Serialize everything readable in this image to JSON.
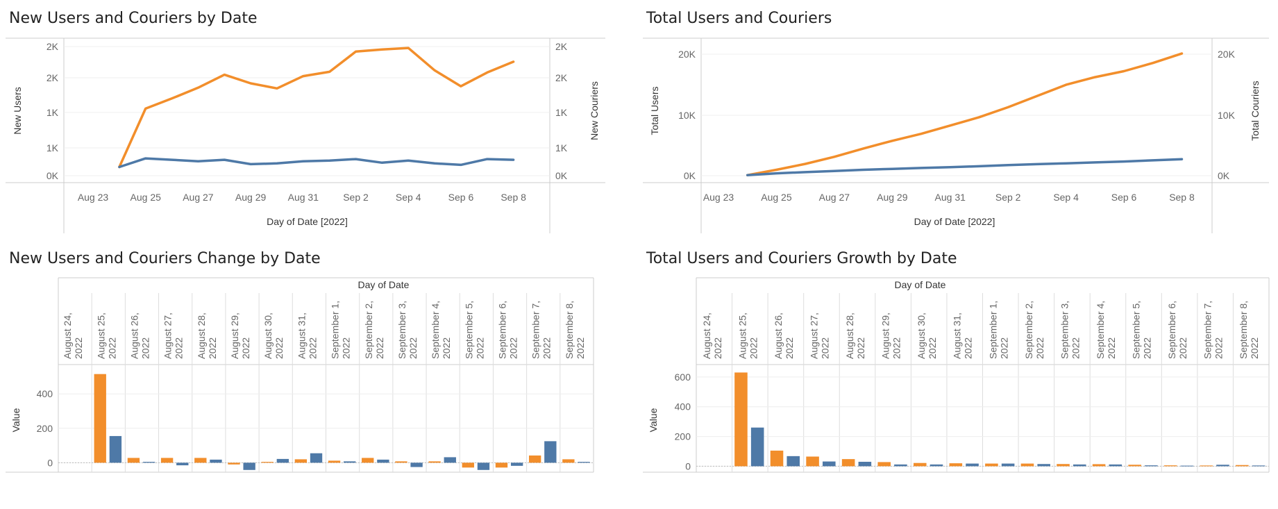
{
  "colors": {
    "users": "#f28e2b",
    "couriers": "#4e79a7",
    "grid": "#d9d9d9",
    "text": "#666666"
  },
  "panels": {
    "p1": {
      "title": "New Users and Couriers by Date"
    },
    "p2": {
      "title": "Total Users and Couriers"
    },
    "p3": {
      "title": "New Users and Couriers Change by Date"
    },
    "p4": {
      "title": "Total Users and Couriers Growth by Date"
    }
  },
  "chart_data": [
    {
      "id": "p1",
      "type": "line",
      "title": "New Users and Couriers by Date",
      "xlabel": "Day of Date [2022]",
      "ylabel_left": "New Users",
      "ylabel_right": "New Couriers",
      "x_ticks": [
        "Aug 23",
        "Aug 25",
        "Aug 27",
        "Aug 29",
        "Aug 31",
        "Sep 2",
        "Sep 4",
        "Sep 6",
        "Sep 8"
      ],
      "y_ticks_left": [
        "2K",
        "2K",
        "1K",
        "1K",
        "0K"
      ],
      "y_ticks_right": [
        "2K",
        "2K",
        "1K",
        "1K",
        "0K"
      ],
      "x_dates": [
        "Aug 24",
        "Aug 25",
        "Aug 26",
        "Aug 27",
        "Aug 28",
        "Aug 29",
        "Aug 30",
        "Aug 31",
        "Sep 1",
        "Sep 2",
        "Sep 3",
        "Sep 4",
        "Sep 5",
        "Sep 6",
        "Sep 7",
        "Sep 8"
      ],
      "series": [
        {
          "name": "New Users",
          "values": [
            120,
            930,
            1070,
            1220,
            1400,
            1280,
            1210,
            1380,
            1440,
            1720,
            1750,
            1770,
            1460,
            1240,
            1430,
            1580
          ]
        },
        {
          "name": "New Couriers",
          "values": [
            120,
            240,
            220,
            200,
            220,
            160,
            170,
            200,
            210,
            230,
            180,
            210,
            170,
            150,
            230,
            220
          ]
        }
      ]
    },
    {
      "id": "p2",
      "type": "line",
      "title": "Total Users and Couriers",
      "xlabel": "Day of Date [2022]",
      "ylabel_left": "Total Users",
      "ylabel_right": "Total Couriers",
      "x_ticks": [
        "Aug 23",
        "Aug 25",
        "Aug 27",
        "Aug 29",
        "Aug 31",
        "Sep 2",
        "Sep 4",
        "Sep 6",
        "Sep 8"
      ],
      "y_ticks_left": [
        "20K",
        "10K",
        "0K"
      ],
      "y_ticks_right": [
        "20K",
        "10K",
        "0K"
      ],
      "x_dates": [
        "Aug 24",
        "Aug 25",
        "Aug 26",
        "Aug 27",
        "Aug 28",
        "Aug 29",
        "Aug 30",
        "Aug 31",
        "Sep 1",
        "Sep 2",
        "Sep 3",
        "Sep 4",
        "Sep 5",
        "Sep 6",
        "Sep 7",
        "Sep 8"
      ],
      "series": [
        {
          "name": "Total Users",
          "values": [
            100,
            1000,
            2000,
            3200,
            4600,
            5900,
            7100,
            8500,
            9900,
            11600,
            13500,
            15400,
            16700,
            17700,
            19100,
            20700
          ]
        },
        {
          "name": "Total Couriers",
          "values": [
            100,
            400,
            600,
            800,
            1000,
            1150,
            1300,
            1450,
            1600,
            1800,
            1950,
            2100,
            2250,
            2400,
            2600,
            2800
          ]
        }
      ]
    },
    {
      "id": "p3",
      "type": "bar",
      "title": "New Users and Couriers Change by Date",
      "xlabel": "Day of Date",
      "ylabel": "Value",
      "y_ticks": [
        "400",
        "200",
        "0"
      ],
      "ylim": [
        -70,
        520
      ],
      "categories": [
        "August 24, 2022",
        "August 25, 2022",
        "August 26, 2022",
        "August 27, 2022",
        "August 28, 2022",
        "August 29, 2022",
        "August 30, 2022",
        "August 31, 2022",
        "September 1, 2022",
        "September 2, 2022",
        "September 3, 2022",
        "September 4, 2022",
        "September 5, 2022",
        "September 6, 2022",
        "September 7, 2022",
        "September 8, 2022"
      ],
      "series": [
        {
          "values": [
            0,
            515,
            28,
            28,
            28,
            -10,
            5,
            20,
            12,
            28,
            8,
            8,
            -28,
            -28,
            42,
            20
          ]
        },
        {
          "values": [
            0,
            155,
            5,
            -15,
            18,
            -42,
            22,
            55,
            8,
            18,
            -25,
            32,
            -42,
            -18,
            125,
            5
          ]
        }
      ]
    },
    {
      "id": "p4",
      "type": "bar",
      "title": "Total Users and Couriers Growth by Date",
      "xlabel": "Day of Date",
      "ylabel": "Value",
      "y_ticks": [
        "600",
        "400",
        "200",
        "0"
      ],
      "ylim": [
        -50,
        640
      ],
      "categories": [
        "August 24, 2022",
        "August 25, 2022",
        "August 26, 2022",
        "August 27, 2022",
        "August 28, 2022",
        "August 29, 2022",
        "August 30, 2022",
        "August 31, 2022",
        "September 1, 2022",
        "September 2, 2022",
        "September 3, 2022",
        "September 4, 2022",
        "September 5, 2022",
        "September 6, 2022",
        "September 7, 2022",
        "September 8, 2022"
      ],
      "series": [
        {
          "values": [
            0,
            630,
            105,
            65,
            48,
            28,
            22,
            20,
            18,
            18,
            15,
            14,
            10,
            6,
            5,
            8
          ]
        },
        {
          "values": [
            0,
            260,
            68,
            32,
            30,
            12,
            12,
            18,
            18,
            15,
            12,
            12,
            6,
            4,
            10,
            5
          ]
        }
      ]
    }
  ]
}
